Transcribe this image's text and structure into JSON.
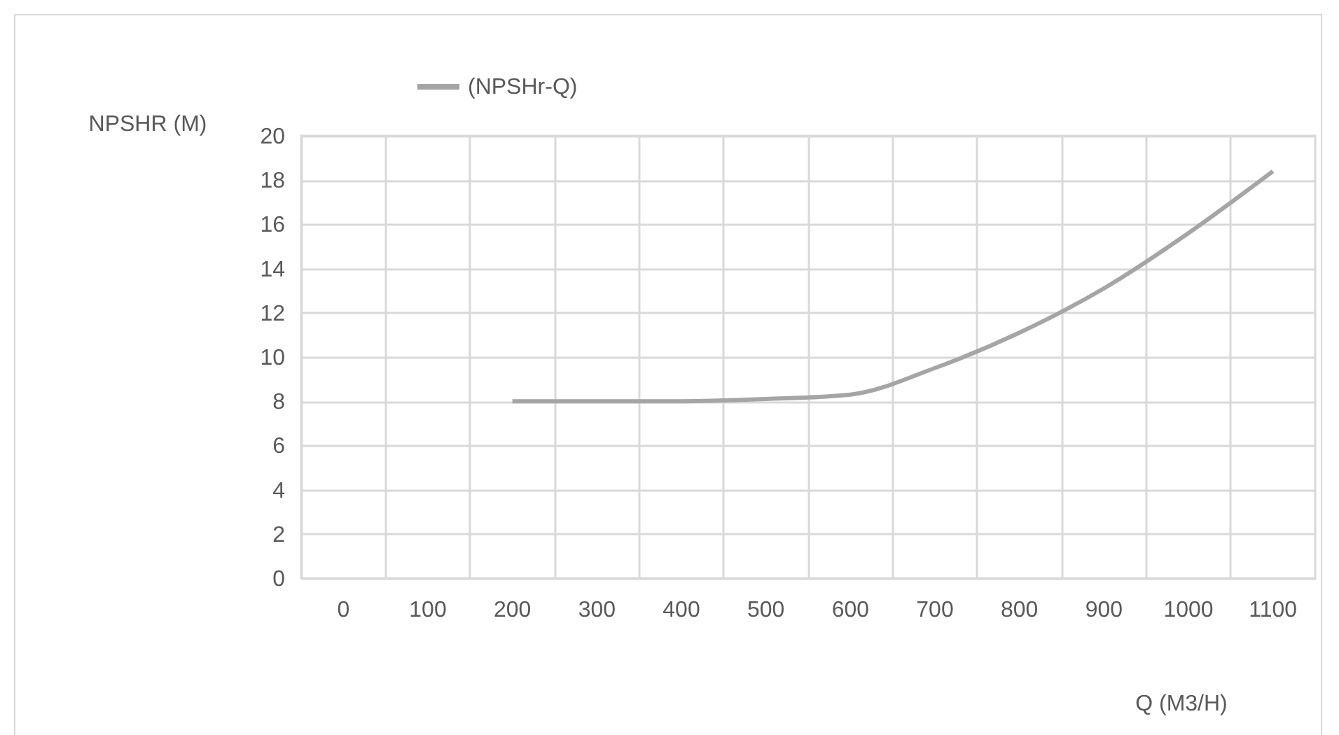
{
  "chart_data": {
    "type": "line",
    "xlabel": "Q (M3/H)",
    "ylabel": "NPSHR  (M)",
    "categories": [
      "0",
      "100",
      "200",
      "300",
      "400",
      "500",
      "600",
      "700",
      "800",
      "900",
      "1000",
      "1100"
    ],
    "series": [
      {
        "name": "(NPSHr-Q)",
        "color": "#a5a5a5",
        "values": [
          null,
          null,
          8.0,
          8.0,
          8.0,
          8.1,
          8.3,
          9.5,
          11.1,
          13.1,
          15.6,
          18.4
        ]
      }
    ],
    "ylim": [
      0,
      20
    ],
    "yticks": [
      0,
      2,
      4,
      6,
      8,
      10,
      12,
      14,
      16,
      18,
      20
    ],
    "grid": true,
    "legend": "top",
    "marker": "none",
    "line_style": "solid"
  }
}
